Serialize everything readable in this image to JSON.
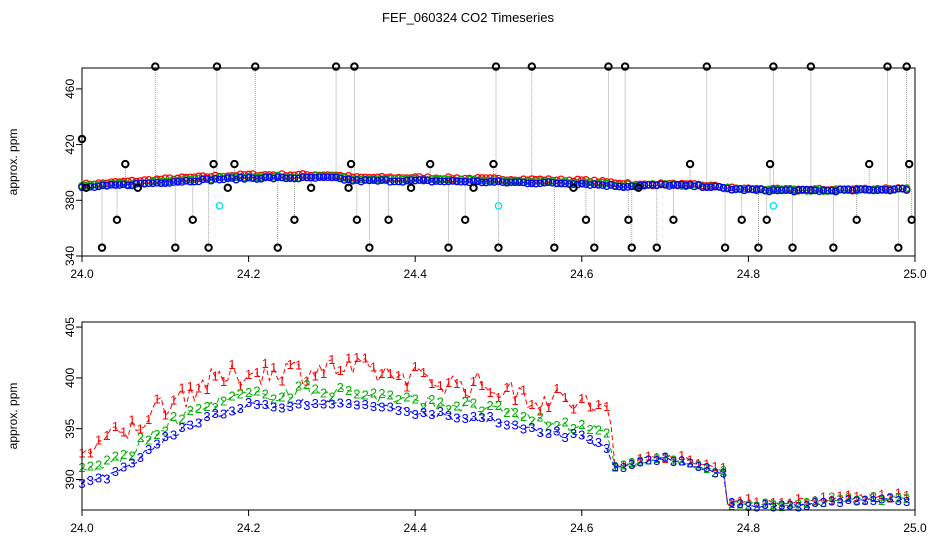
{
  "page_title": "FEF_060324  CO2 Timeseries",
  "chart_data": [
    {
      "type": "scatter",
      "panel": "top",
      "title": "FEF_060324  CO2 Timeseries",
      "xlabel": "",
      "ylabel": "approx. ppm",
      "xlim": [
        24.0,
        25.0
      ],
      "ylim": [
        340,
        475
      ],
      "x_ticks": [
        24.0,
        24.2,
        24.4,
        24.6,
        24.8,
        25.0
      ],
      "x_tick_labels": [
        "24.0",
        "24.2",
        "24.4",
        "24.6",
        "24.8",
        "25.0"
      ],
      "y_ticks": [
        340,
        380,
        420,
        460
      ],
      "y_tick_labels": [
        "340",
        "380",
        "420",
        "460"
      ],
      "colors": {
        "red": "#ff0000",
        "green": "#00b000",
        "blue": "#0000ff",
        "black": "#000000",
        "cyan": "#00e5ee",
        "trace": "#888888"
      },
      "series": [
        {
          "name": "main",
          "x_start": 24.0,
          "x_end": 24.99,
          "step": 0.005,
          "knots_x": [
            24.0,
            24.05,
            24.1,
            24.16,
            24.2,
            24.3,
            24.33,
            24.4,
            24.5,
            24.6,
            24.65,
            24.7,
            24.75,
            24.78,
            24.83,
            24.9,
            24.99
          ],
          "knots_y": [
            389,
            391,
            393,
            395,
            396,
            396,
            394,
            394,
            393,
            392,
            390,
            391,
            390,
            388,
            387,
            387,
            388
          ]
        },
        {
          "name": "black_outliers",
          "color": "black",
          "x": [
            24.0,
            24.005,
            24.024,
            24.042,
            24.052,
            24.067,
            24.088,
            24.112,
            24.133,
            24.152,
            24.158,
            24.162,
            24.175,
            24.183,
            24.208,
            24.235,
            24.255,
            24.275,
            24.305,
            24.32,
            24.323,
            24.327,
            24.33,
            24.345,
            24.368,
            24.395,
            24.418,
            24.44,
            24.46,
            24.47,
            24.494,
            24.497,
            24.5,
            24.54,
            24.567,
            24.59,
            24.605,
            24.615,
            24.632,
            24.652,
            24.656,
            24.66,
            24.668,
            24.69,
            24.71,
            24.73,
            24.75,
            24.772,
            24.792,
            24.812,
            24.822,
            24.826,
            24.83,
            24.853,
            24.875,
            24.902,
            24.93,
            24.945,
            24.967,
            24.98,
            24.99,
            24.993,
            24.996
          ],
          "y": [
            424,
            389,
            346,
            366,
            406,
            389,
            476,
            346,
            366,
            346,
            406,
            476,
            389,
            406,
            476,
            346,
            366,
            389,
            476,
            389,
            406,
            476,
            366,
            346,
            366,
            389,
            406,
            346,
            366,
            389,
            406,
            476,
            346,
            476,
            346,
            389,
            366,
            346,
            476,
            476,
            366,
            346,
            389,
            346,
            366,
            406,
            476,
            346,
            366,
            346,
            366,
            406,
            476,
            346,
            476,
            346,
            366,
            406,
            476,
            346,
            476,
            406,
            366
          ]
        },
        {
          "name": "cyan",
          "color": "cyan",
          "x": [
            24.165,
            24.5,
            24.83
          ],
          "y": [
            376,
            376,
            376
          ]
        }
      ]
    },
    {
      "type": "line",
      "panel": "bottom",
      "xlabel": "",
      "ylabel": "approx. ppm",
      "xlim": [
        24.0,
        25.0
      ],
      "ylim": [
        387,
        405.5
      ],
      "x_ticks": [
        24.0,
        24.2,
        24.4,
        24.6,
        24.8,
        25.0
      ],
      "x_tick_labels": [
        "24.0",
        "24.2",
        "24.4",
        "24.6",
        "24.8",
        "25.0"
      ],
      "y_ticks": [
        390,
        395,
        400,
        405
      ],
      "y_tick_labels": [
        "390",
        "395",
        "400",
        "405"
      ],
      "x_start": 24.0,
      "x_end": 24.99,
      "step": 0.005,
      "base_knots_x": [
        24.0,
        24.02,
        24.05,
        24.1,
        24.15,
        24.2,
        24.3,
        24.35,
        24.4,
        24.45,
        24.5,
        24.55,
        24.6,
        24.63,
        24.64,
        24.7,
        24.75,
        24.77,
        24.775,
        24.85,
        24.9,
        24.99
      ],
      "base_knots_y": [
        389.5,
        390,
        391,
        394,
        396,
        397,
        397.5,
        397,
        396.5,
        396,
        395.5,
        394.5,
        394,
        393,
        391,
        392,
        391,
        390.5,
        387.5,
        387.3,
        387.8,
        388
      ],
      "series": [
        {
          "name": "1",
          "color": "#ff0000",
          "offset_in": 3.0,
          "offset_out": 0.3,
          "jitter": 2.5
        },
        {
          "name": "2",
          "color": "#00b000",
          "offset_in": 1.0,
          "offset_out": 0.1,
          "jitter": 1.2
        },
        {
          "name": "3",
          "color": "#0000ff",
          "offset_in": 0.0,
          "offset_out": 0.0,
          "jitter": 0.6
        }
      ]
    }
  ]
}
